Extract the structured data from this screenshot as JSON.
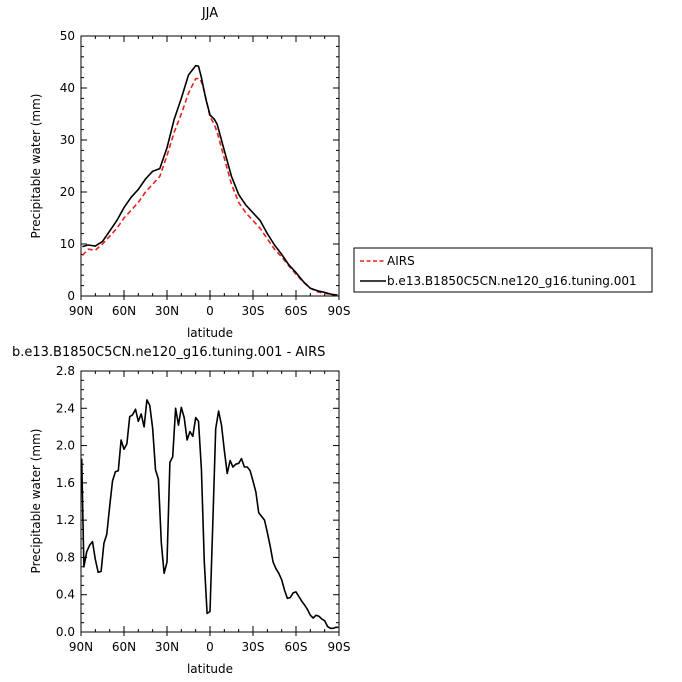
{
  "chart_data": [
    {
      "type": "line",
      "title": "JJA",
      "xlabel": "latitude",
      "ylabel": "Precipitable water (mm)",
      "ylim": [
        0,
        50
      ],
      "xlim": [
        "90N",
        "90S"
      ],
      "x_ticks": [
        "90N",
        "60N",
        "30N",
        "0",
        "30S",
        "60S",
        "90S"
      ],
      "y_ticks": [
        "0",
        "10",
        "20",
        "30",
        "40",
        "50"
      ],
      "legend_position": "right",
      "series": [
        {
          "name": "AIRS",
          "color": "#e8201c",
          "dash": "dashed",
          "lat": [
            89,
            85,
            80,
            75,
            70,
            65,
            60,
            55,
            50,
            45,
            40,
            35,
            30,
            25,
            20,
            15,
            10,
            7,
            5,
            2,
            0,
            -3,
            -5,
            -10,
            -15,
            -20,
            -25,
            -30,
            -35,
            -40,
            -45,
            -50,
            -55,
            -60,
            -65,
            -70,
            -75,
            -80,
            -85,
            -89
          ],
          "values": [
            7.8,
            9.0,
            8.8,
            10.0,
            11.5,
            13.0,
            15.0,
            16.5,
            18.0,
            20.0,
            21.5,
            23.0,
            27.0,
            31.5,
            35.0,
            39.0,
            41.8,
            41.8,
            40.5,
            37.0,
            34.5,
            33.0,
            31.5,
            26.5,
            21.5,
            18.0,
            16.0,
            14.5,
            13.0,
            11.0,
            9.0,
            7.5,
            5.8,
            4.2,
            2.7,
            1.5,
            0.8,
            0.5,
            0.3,
            0.1
          ]
        },
        {
          "name": "b.e13.B1850C5CN.ne120_g16.tuning.001",
          "color": "#000000",
          "dash": "solid",
          "lat": [
            89,
            85,
            80,
            75,
            70,
            65,
            60,
            55,
            50,
            45,
            40,
            35,
            30,
            25,
            20,
            15,
            10,
            8,
            6,
            3,
            0,
            -3,
            -5,
            -10,
            -15,
            -20,
            -25,
            -30,
            -35,
            -40,
            -45,
            -50,
            -55,
            -60,
            -65,
            -70,
            -75,
            -80,
            -85,
            -89
          ],
          "values": [
            9.5,
            9.8,
            9.6,
            10.5,
            12.5,
            14.5,
            17.0,
            19.0,
            20.5,
            22.5,
            24.0,
            24.5,
            28.5,
            34.0,
            38.0,
            42.5,
            44.3,
            44.2,
            42.0,
            38.0,
            34.8,
            34.0,
            33.0,
            28.0,
            23.0,
            19.5,
            17.5,
            16.0,
            14.5,
            12.0,
            9.8,
            8.0,
            6.0,
            4.5,
            2.8,
            1.5,
            1.0,
            0.7,
            0.3,
            0.2
          ]
        }
      ]
    },
    {
      "type": "line",
      "title": "b.e13.B1850C5CN.ne120_g16.tuning.001 - AIRS",
      "xlabel": "latitude",
      "ylabel": "Precipitable water (mm)",
      "ylim": [
        0.0,
        2.8
      ],
      "xlim": [
        "90N",
        "90S"
      ],
      "x_ticks": [
        "90N",
        "60N",
        "30N",
        "0",
        "30S",
        "60S",
        "90S"
      ],
      "y_ticks": [
        "0.0",
        "0.4",
        "0.8",
        "1.2",
        "1.6",
        "2.0",
        "2.4",
        "2.8"
      ],
      "series": [
        {
          "color": "#000000",
          "lat": [
            89.5,
            88,
            86,
            84,
            82,
            80,
            78,
            76,
            74,
            72,
            70,
            68,
            66,
            64,
            62,
            60,
            58,
            56,
            54,
            52,
            50,
            48,
            46,
            44,
            42,
            40,
            38,
            36,
            34,
            32,
            30,
            28,
            26,
            24,
            22,
            20,
            18,
            16,
            14,
            12,
            10,
            8,
            6,
            4,
            2,
            0,
            -2,
            -4,
            -6,
            -8,
            -10,
            -12,
            -14,
            -16,
            -18,
            -20,
            -22,
            -24,
            -26,
            -28,
            -30,
            -32,
            -34,
            -36,
            -38,
            -40,
            -42,
            -44,
            -46,
            -48,
            -50,
            -52,
            -54,
            -56,
            -58,
            -60,
            -62,
            -64,
            -66,
            -68,
            -70,
            -72,
            -74,
            -76,
            -78,
            -80,
            -82,
            -84,
            -86,
            -88,
            -89.5
          ],
          "values": [
            1.86,
            0.7,
            0.86,
            0.93,
            0.97,
            0.78,
            0.64,
            0.65,
            0.95,
            1.05,
            1.35,
            1.62,
            1.72,
            1.73,
            2.06,
            1.96,
            2.02,
            2.31,
            2.33,
            2.39,
            2.26,
            2.34,
            2.2,
            2.49,
            2.43,
            2.18,
            1.74,
            1.64,
            0.96,
            0.63,
            0.75,
            1.82,
            1.88,
            2.4,
            2.22,
            2.41,
            2.3,
            2.06,
            2.15,
            2.1,
            2.3,
            2.26,
            1.75,
            0.75,
            0.2,
            0.22,
            1.2,
            2.18,
            2.37,
            2.22,
            1.95,
            1.7,
            1.84,
            1.77,
            1.8,
            1.81,
            1.86,
            1.77,
            1.77,
            1.73,
            1.62,
            1.5,
            1.28,
            1.24,
            1.2,
            1.07,
            0.92,
            0.75,
            0.68,
            0.63,
            0.56,
            0.45,
            0.36,
            0.37,
            0.42,
            0.43,
            0.38,
            0.33,
            0.29,
            0.24,
            0.18,
            0.15,
            0.18,
            0.17,
            0.14,
            0.12,
            0.06,
            0.04,
            0.04,
            0.05,
            0.05
          ]
        }
      ]
    }
  ]
}
